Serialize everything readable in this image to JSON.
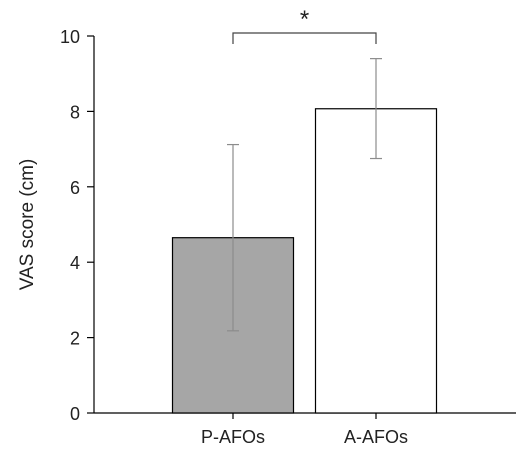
{
  "chart_data": {
    "type": "bar",
    "categories": [
      "P-AFOs",
      "A-AFOs"
    ],
    "values": [
      4.65,
      8.07
    ],
    "error_upper": [
      7.12,
      9.4
    ],
    "error_lower": [
      2.18,
      6.75
    ],
    "bar_colors": [
      "#a6a6a6",
      "#ffffff"
    ],
    "bar_stroke": "#000000",
    "error_bar_color": "#8c8c8c",
    "ylabel": "VAS score (cm)",
    "xlabel": "",
    "ylim": [
      0,
      10
    ],
    "yticks": [
      "0",
      "2",
      "4",
      "6",
      "8",
      "10"
    ],
    "grid": false,
    "significance": {
      "pair": [
        "P-AFOs",
        "A-AFOs"
      ],
      "label": "*"
    }
  }
}
